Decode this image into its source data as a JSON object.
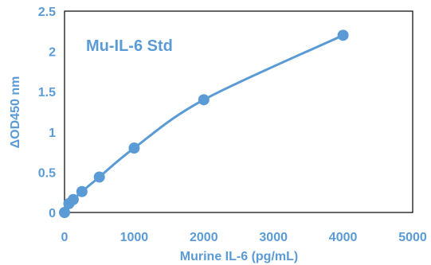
{
  "chart_data": {
    "type": "scatter",
    "title": "Mu-IL-6 Std",
    "xlabel": "Murine IL-6 (pg/mL)",
    "ylabel": "ΔOD450 nm",
    "xlim": [
      0,
      5000
    ],
    "ylim": [
      0,
      2.5
    ],
    "x_ticks": [
      "0",
      "1000",
      "2000",
      "3000",
      "4000",
      "5000"
    ],
    "y_ticks": [
      "0",
      "0.5",
      "1",
      "1.5",
      "2",
      "2.5"
    ],
    "grid": false,
    "legend": "none",
    "series": [
      {
        "x": [
          0,
          62.5,
          125,
          250,
          500,
          1000,
          2000,
          4000
        ],
        "y": [
          0.0,
          0.11,
          0.16,
          0.26,
          0.44,
          0.8,
          1.4,
          2.2
        ]
      }
    ],
    "colors": {
      "series": "#5b9bd5",
      "axis": "#000000",
      "text": "#5b9bd5"
    }
  }
}
